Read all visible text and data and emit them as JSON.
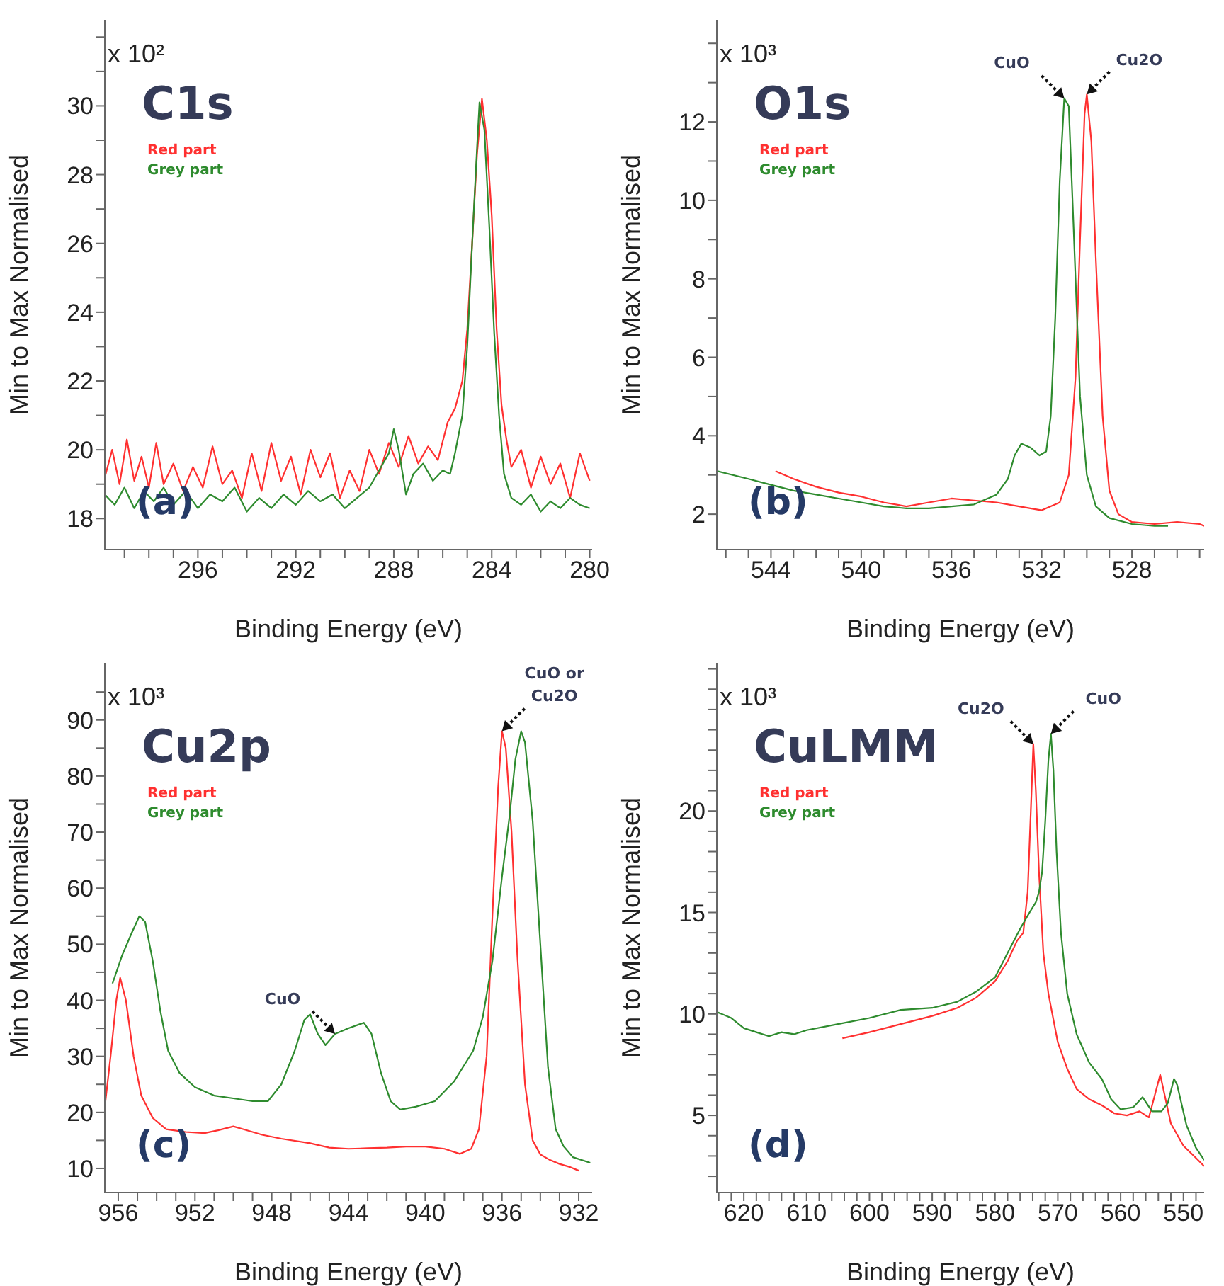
{
  "chart_data": [
    {
      "type": "line",
      "title": "C1s",
      "subtitle": "(a)",
      "xlabel": "Binding Energy (eV)",
      "ylabel": "Min to Max Normalised",
      "legend": "top left",
      "marker": "none",
      "annotations": [
        "x 10²"
      ],
      "xlim": [
        299.8,
        279.9
      ],
      "ylim": [
        17.1,
        32.5
      ],
      "xticks": [
        {
          "value": 299,
          "label": null
        },
        {
          "value": 298,
          "label": null
        },
        {
          "value": 297,
          "label": null
        },
        296,
        {
          "value": 295,
          "label": null
        },
        {
          "value": 294,
          "label": null
        },
        {
          "value": 293,
          "label": null
        },
        292,
        {
          "value": 291,
          "label": null
        },
        {
          "value": 290,
          "label": null
        },
        {
          "value": 289,
          "label": null
        },
        288,
        {
          "value": 287,
          "label": null
        },
        {
          "value": 286,
          "label": null
        },
        {
          "value": 285,
          "label": null
        },
        284,
        {
          "value": 283,
          "label": null
        },
        {
          "value": 282,
          "label": null
        },
        {
          "value": 281,
          "label": null
        },
        280
      ],
      "yticks": [
        18,
        {
          "value": 19,
          "label": null
        },
        20,
        {
          "value": 21,
          "label": null
        },
        22,
        {
          "value": 23,
          "label": null
        },
        24,
        {
          "value": 25,
          "label": null
        },
        26,
        {
          "value": 27,
          "label": null
        },
        28,
        {
          "value": 29,
          "label": null
        },
        30,
        {
          "value": 31,
          "label": null
        },
        {
          "value": 32,
          "label": null
        }
      ],
      "series": [
        {
          "name": "Red part",
          "color": "#ff3030",
          "x": [
            299.8,
            299.5,
            299.2,
            298.9,
            298.6,
            298.3,
            298,
            297.7,
            297.4,
            297,
            296.6,
            296.2,
            295.8,
            295.4,
            295,
            294.6,
            294.2,
            293.8,
            293.4,
            293,
            292.6,
            292.2,
            291.8,
            291.4,
            291,
            290.6,
            290.2,
            289.8,
            289.4,
            289,
            288.6,
            288.2,
            287.8,
            287.4,
            287,
            286.6,
            286.2,
            285.8,
            285.5,
            285.2,
            285,
            284.8,
            284.6,
            284.4,
            284.2,
            284,
            283.8,
            283.6,
            283.4,
            283.2,
            282.8,
            282.4,
            282,
            281.6,
            281.2,
            280.8,
            280.4,
            280
          ],
          "values": [
            19.2,
            20.0,
            19.0,
            20.3,
            19.1,
            19.8,
            18.9,
            20.2,
            19.0,
            19.6,
            18.8,
            19.5,
            18.9,
            20.1,
            19.0,
            19.4,
            18.6,
            19.9,
            18.8,
            20.2,
            19.1,
            19.8,
            18.7,
            20.0,
            19.2,
            19.9,
            18.6,
            19.4,
            18.8,
            20.0,
            19.3,
            20.2,
            19.5,
            20.4,
            19.6,
            20.1,
            19.7,
            20.8,
            21.2,
            22.0,
            23.5,
            26.0,
            28.6,
            30.2,
            29.0,
            26.8,
            23.5,
            21.3,
            20.3,
            19.5,
            20.0,
            18.9,
            19.8,
            19.0,
            19.6,
            18.6,
            19.9,
            19.1
          ]
        },
        {
          "name": "Grey part",
          "color": "#2e8b2e",
          "x": [
            299.8,
            299.4,
            299,
            298.6,
            298.2,
            297.8,
            297.4,
            297,
            296.5,
            296,
            295.5,
            295,
            294.5,
            294,
            293.5,
            293,
            292.5,
            292,
            291.5,
            291,
            290.5,
            290,
            289.5,
            289,
            288.6,
            288.2,
            288,
            287.8,
            287.5,
            287.2,
            286.8,
            286.4,
            286,
            285.7,
            285.5,
            285.2,
            285,
            284.8,
            284.6,
            284.5,
            284.3,
            284.1,
            283.9,
            283.7,
            283.5,
            283.2,
            282.8,
            282.4,
            282,
            281.6,
            281.2,
            280.8,
            280.4,
            280
          ],
          "values": [
            18.7,
            18.4,
            18.9,
            18.3,
            18.8,
            18.5,
            18.9,
            18.4,
            18.8,
            18.3,
            18.7,
            18.5,
            18.9,
            18.2,
            18.6,
            18.3,
            18.7,
            18.4,
            18.8,
            18.5,
            18.7,
            18.3,
            18.6,
            18.9,
            19.4,
            19.9,
            20.6,
            20.0,
            18.7,
            19.3,
            19.6,
            19.1,
            19.4,
            19.3,
            19.9,
            21.0,
            23.0,
            26.0,
            28.8,
            30.1,
            29.3,
            26.5,
            23.4,
            21.0,
            19.3,
            18.6,
            18.4,
            18.7,
            18.2,
            18.5,
            18.3,
            18.6,
            18.4,
            18.3
          ]
        }
      ]
    },
    {
      "type": "line",
      "title": "O1s",
      "subtitle": "(b)",
      "xlabel": "Binding Energy (eV)",
      "ylabel": "Min to Max Normalised",
      "legend": "top left",
      "marker": "none",
      "annotations": [
        "x 10³",
        {
          "text": "CuO",
          "x": 531,
          "y": 12.6
        },
        {
          "text": "Cu2O",
          "x": 530,
          "y": 12.7
        }
      ],
      "xlim": [
        546.4,
        524.8
      ],
      "ylim": [
        1.1,
        14.6
      ],
      "xticks": [
        {
          "value": 546,
          "label": null
        },
        {
          "value": 545,
          "label": null
        },
        544,
        {
          "value": 543,
          "label": null
        },
        {
          "value": 542,
          "label": null
        },
        {
          "value": 541,
          "label": null
        },
        540,
        {
          "value": 539,
          "label": null
        },
        {
          "value": 538,
          "label": null
        },
        {
          "value": 537,
          "label": null
        },
        536,
        {
          "value": 535,
          "label": null
        },
        {
          "value": 534,
          "label": null
        },
        {
          "value": 533,
          "label": null
        },
        532,
        {
          "value": 531,
          "label": null
        },
        {
          "value": 530,
          "label": null
        },
        {
          "value": 529,
          "label": null
        },
        528,
        {
          "value": 527,
          "label": null
        },
        {
          "value": 526,
          "label": null
        },
        {
          "value": 525,
          "label": null
        }
      ],
      "yticks": [
        2,
        {
          "value": 3,
          "label": null
        },
        4,
        {
          "value": 5,
          "label": null
        },
        6,
        {
          "value": 7,
          "label": null
        },
        8,
        {
          "value": 9,
          "label": null
        },
        10,
        {
          "value": 11,
          "label": null
        },
        12,
        {
          "value": 13,
          "label": null
        },
        {
          "value": 14,
          "label": null
        }
      ],
      "series": [
        {
          "name": "Red part",
          "color": "#ff3030",
          "x": [
            543.8,
            543,
            542,
            541,
            540,
            539,
            538,
            537,
            536,
            535,
            534,
            533,
            532,
            531.2,
            530.8,
            530.5,
            530.3,
            530.1,
            530,
            529.8,
            529.6,
            529.3,
            529,
            528.6,
            528,
            527,
            526,
            525,
            524.8
          ],
          "values": [
            3.1,
            2.9,
            2.7,
            2.55,
            2.45,
            2.3,
            2.2,
            2.3,
            2.4,
            2.35,
            2.3,
            2.2,
            2.1,
            2.3,
            3.0,
            5.5,
            9.0,
            12.2,
            12.7,
            11.5,
            8.5,
            4.5,
            2.6,
            2.0,
            1.8,
            1.75,
            1.8,
            1.75,
            1.7
          ]
        },
        {
          "name": "Grey part",
          "color": "#2e8b2e",
          "x": [
            546.4,
            545,
            544,
            543,
            542,
            541,
            540,
            539,
            538,
            537,
            536,
            535,
            534,
            533.5,
            533.2,
            532.9,
            532.5,
            532.1,
            531.8,
            531.6,
            531.4,
            531.2,
            531,
            530.8,
            530.6,
            530.3,
            530,
            529.6,
            529,
            528,
            527,
            526.4
          ],
          "values": [
            3.1,
            2.9,
            2.75,
            2.6,
            2.5,
            2.4,
            2.3,
            2.2,
            2.15,
            2.15,
            2.2,
            2.25,
            2.5,
            2.9,
            3.5,
            3.8,
            3.7,
            3.5,
            3.6,
            4.5,
            7.0,
            10.5,
            12.6,
            12.4,
            9.5,
            5.0,
            3.0,
            2.2,
            1.9,
            1.75,
            1.7,
            1.7
          ]
        }
      ]
    },
    {
      "type": "line",
      "title": "Cu2p",
      "subtitle": "(c)",
      "xlabel": "Binding Energy (eV)",
      "ylabel": "Min to Max Normalised",
      "legend": "top left",
      "marker": "none",
      "annotations": [
        "x 10³",
        {
          "text": "CuO",
          "x": 944.7,
          "y": 34
        },
        {
          "text": "CuO or Cu2O",
          "x": 936,
          "y": 88
        }
      ],
      "xlim": [
        956.7,
        931.3
      ],
      "ylim": [
        5.7,
        100.2
      ],
      "xticks": [
        956,
        {
          "value": 955,
          "label": null
        },
        {
          "value": 954,
          "label": null
        },
        {
          "value": 953,
          "label": null
        },
        952,
        {
          "value": 951,
          "label": null
        },
        {
          "value": 950,
          "label": null
        },
        {
          "value": 949,
          "label": null
        },
        948,
        {
          "value": 947,
          "label": null
        },
        {
          "value": 946,
          "label": null
        },
        {
          "value": 945,
          "label": null
        },
        944,
        {
          "value": 943,
          "label": null
        },
        {
          "value": 942,
          "label": null
        },
        {
          "value": 941,
          "label": null
        },
        940,
        {
          "value": 939,
          "label": null
        },
        {
          "value": 938,
          "label": null
        },
        {
          "value": 937,
          "label": null
        },
        936,
        {
          "value": 935,
          "label": null
        },
        {
          "value": 934,
          "label": null
        },
        {
          "value": 933,
          "label": null
        },
        932
      ],
      "yticks": [
        10,
        {
          "value": 15,
          "label": null
        },
        20,
        {
          "value": 25,
          "label": null
        },
        30,
        {
          "value": 35,
          "label": null
        },
        40,
        {
          "value": 45,
          "label": null
        },
        50,
        {
          "value": 55,
          "label": null
        },
        60,
        {
          "value": 65,
          "label": null
        },
        70,
        {
          "value": 75,
          "label": null
        },
        80,
        {
          "value": 85,
          "label": null
        },
        90,
        {
          "value": 95,
          "label": null
        }
      ],
      "series": [
        {
          "name": "Red part",
          "color": "#ff3030",
          "x": [
            956.7,
            956.4,
            956.1,
            955.9,
            955.6,
            955.2,
            954.8,
            954.2,
            953.5,
            952.5,
            951.5,
            950.8,
            950,
            949.5,
            948.5,
            947.5,
            946,
            945,
            944,
            943,
            942,
            941,
            940,
            939,
            938.2,
            937.6,
            937.2,
            936.8,
            936.5,
            936.2,
            936,
            935.8,
            935.5,
            935.2,
            934.8,
            934.4,
            934,
            933.5,
            933,
            932.5,
            932
          ],
          "values": [
            21,
            30,
            40,
            44,
            40,
            30,
            23,
            19,
            17,
            16.5,
            16.3,
            16.8,
            17.5,
            17,
            16,
            15.3,
            14.5,
            13.7,
            13.5,
            13.6,
            13.7,
            13.9,
            13.9,
            13.5,
            12.6,
            13.5,
            17,
            30,
            55,
            78,
            88,
            85,
            70,
            48,
            25,
            15,
            12.5,
            11.5,
            10.8,
            10.3,
            9.6
          ]
        },
        {
          "name": "Grey part",
          "color": "#2e8b2e",
          "x": [
            956.3,
            955.8,
            955.3,
            954.9,
            954.6,
            954.2,
            953.8,
            953.4,
            952.8,
            952,
            951,
            950,
            949,
            948.2,
            947.5,
            946.8,
            946.3,
            946,
            945.6,
            945.2,
            944.7,
            944,
            943.2,
            942.8,
            942.3,
            941.8,
            941.3,
            940.5,
            939.5,
            938.5,
            937.5,
            937,
            936.5,
            936,
            935.6,
            935.3,
            935,
            934.8,
            934.4,
            934,
            933.6,
            933.2,
            932.8,
            932.3,
            931.4
          ],
          "values": [
            43,
            48,
            52,
            55,
            54,
            47,
            38,
            31,
            27,
            24.5,
            23,
            22.5,
            22,
            22,
            25,
            31,
            36.5,
            37.5,
            34,
            32,
            34,
            35,
            36,
            34,
            27,
            22,
            20.5,
            21,
            22,
            25.5,
            31,
            37,
            47,
            62,
            73,
            83,
            88,
            86,
            72,
            50,
            28,
            17,
            14,
            12,
            11
          ]
        }
      ]
    },
    {
      "type": "line",
      "title": "CuLMM",
      "subtitle": "(d)",
      "xlabel": "Binding Energy (eV)",
      "ylabel": "Min to Max Normalised",
      "legend": "top left",
      "marker": "none",
      "annotations": [
        "x 10³",
        {
          "text": "Cu2O",
          "x": 573.9,
          "y": 23.3
        },
        {
          "text": "CuO",
          "x": 571.1,
          "y": 23.8
        }
      ],
      "xlim": [
        624.3,
        546.7
      ],
      "ylim": [
        1.2,
        27.3
      ],
      "xticks": [
        {
          "value": 624,
          "label": null
        },
        {
          "value": 622,
          "label": null
        },
        620,
        {
          "value": 618,
          "label": null
        },
        {
          "value": 616,
          "label": null
        },
        {
          "value": 614,
          "label": null
        },
        {
          "value": 612,
          "label": null
        },
        610,
        {
          "value": 608,
          "label": null
        },
        {
          "value": 606,
          "label": null
        },
        {
          "value": 604,
          "label": null
        },
        {
          "value": 602,
          "label": null
        },
        600,
        {
          "value": 598,
          "label": null
        },
        {
          "value": 596,
          "label": null
        },
        {
          "value": 594,
          "label": null
        },
        {
          "value": 592,
          "label": null
        },
        590,
        {
          "value": 588,
          "label": null
        },
        {
          "value": 586,
          "label": null
        },
        {
          "value": 584,
          "label": null
        },
        {
          "value": 582,
          "label": null
        },
        580,
        {
          "value": 578,
          "label": null
        },
        {
          "value": 576,
          "label": null
        },
        {
          "value": 574,
          "label": null
        },
        {
          "value": 572,
          "label": null
        },
        570,
        {
          "value": 568,
          "label": null
        },
        {
          "value": 566,
          "label": null
        },
        {
          "value": 564,
          "label": null
        },
        {
          "value": 562,
          "label": null
        },
        560,
        {
          "value": 558,
          "label": null
        },
        {
          "value": 556,
          "label": null
        },
        {
          "value": 554,
          "label": null
        },
        {
          "value": 552,
          "label": null
        },
        550,
        {
          "value": 548,
          "label": null
        }
      ],
      "yticks": [
        {
          "value": 2,
          "label": null
        },
        {
          "value": 3,
          "label": null
        },
        {
          "value": 4,
          "label": null
        },
        5,
        {
          "value": 6,
          "label": null
        },
        {
          "value": 7,
          "label": null
        },
        {
          "value": 8,
          "label": null
        },
        {
          "value": 9,
          "label": null
        },
        10,
        {
          "value": 11,
          "label": null
        },
        {
          "value": 12,
          "label": null
        },
        {
          "value": 13,
          "label": null
        },
        {
          "value": 14,
          "label": null
        },
        15,
        {
          "value": 16,
          "label": null
        },
        {
          "value": 17,
          "label": null
        },
        {
          "value": 18,
          "label": null
        },
        {
          "value": 19,
          "label": null
        },
        20,
        {
          "value": 21,
          "label": null
        },
        {
          "value": 22,
          "label": null
        },
        {
          "value": 23,
          "label": null
        },
        {
          "value": 24,
          "label": null
        },
        {
          "value": 25,
          "label": null
        },
        {
          "value": 26,
          "label": null
        },
        {
          "value": 27,
          "label": null
        }
      ],
      "series": [
        {
          "name": "Red part",
          "color": "#ff3030",
          "x": [
            604.3,
            600,
            595,
            590,
            586,
            583,
            580,
            578,
            576.5,
            575.5,
            574.8,
            574.3,
            573.9,
            573.5,
            573,
            572.3,
            571.5,
            570,
            568.5,
            567,
            565,
            563,
            561,
            559,
            557,
            555.5,
            554.3,
            553.7,
            553.2,
            552,
            550,
            548,
            546.7
          ],
          "values": [
            8.8,
            9.1,
            9.5,
            9.9,
            10.3,
            10.8,
            11.6,
            12.6,
            13.6,
            14,
            16,
            20,
            23.3,
            21,
            17,
            13,
            11,
            8.6,
            7.3,
            6.3,
            5.8,
            5.5,
            5.1,
            5.0,
            5.2,
            4.9,
            6.3,
            7.0,
            6.3,
            4.6,
            3.5,
            2.9,
            2.5
          ]
        },
        {
          "name": "Grey part",
          "color": "#2e8b2e",
          "x": [
            624.3,
            622,
            620,
            618,
            616,
            614,
            612,
            610,
            605,
            600,
            595,
            590,
            586,
            583,
            580,
            578,
            576,
            574.5,
            573.5,
            573,
            572.5,
            572,
            571.5,
            571.1,
            570.7,
            570.2,
            569.5,
            568.5,
            567,
            565,
            563,
            561.5,
            560,
            558,
            556.5,
            555,
            553.5,
            552.5,
            551.5,
            551,
            549.5,
            548,
            546.7
          ],
          "values": [
            10.1,
            9.8,
            9.3,
            9.1,
            8.9,
            9.1,
            9.0,
            9.2,
            9.5,
            9.8,
            10.2,
            10.3,
            10.6,
            11.1,
            11.8,
            13,
            14.2,
            15,
            15.5,
            16,
            17,
            19.5,
            22.5,
            23.8,
            22,
            18,
            14,
            11,
            9,
            7.6,
            6.8,
            5.8,
            5.3,
            5.4,
            5.9,
            5.2,
            5.2,
            5.6,
            6.8,
            6.5,
            4.5,
            3.4,
            2.8
          ]
        }
      ]
    }
  ]
}
